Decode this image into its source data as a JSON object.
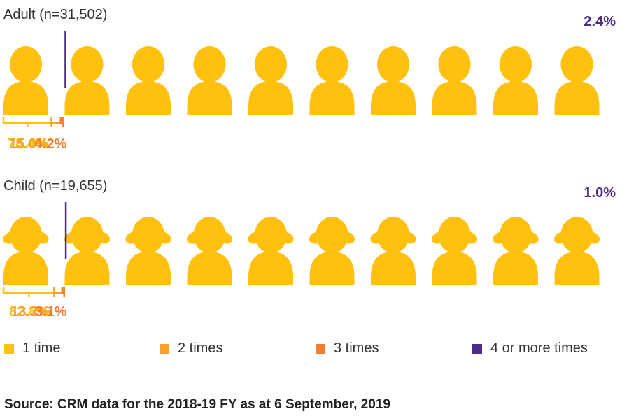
{
  "colors": {
    "one": "#FFC10E",
    "two": "#F7A12B",
    "three": "#F27D2A",
    "four": "#4B2E8A",
    "text": "#333333"
  },
  "chart_data": [
    {
      "type": "pictograph",
      "title": "Adult (n=31,502)",
      "figure": "adult",
      "series": [
        {
          "name": "1 time",
          "value": 78.4,
          "label": "78.4%"
        },
        {
          "name": "2 times",
          "value": 15.0,
          "label": "15.0%"
        },
        {
          "name": "3 times",
          "value": 4.2,
          "label": "4.2%"
        },
        {
          "name": "4 or more times",
          "value": 2.4,
          "label": "2.4%"
        }
      ]
    },
    {
      "type": "pictograph",
      "title": "Child (n=19,655)",
      "figure": "child",
      "series": [
        {
          "name": "1 time",
          "value": 82.8,
          "label": "82.8%"
        },
        {
          "name": "2 times",
          "value": 13.2,
          "label": "13.2%"
        },
        {
          "name": "3 times",
          "value": 3.1,
          "label": "3.1%"
        },
        {
          "name": "4 or more times",
          "value": 1.0,
          "label": "1.0%"
        }
      ]
    }
  ],
  "legend": [
    {
      "label": "1 time",
      "color": "#FFC10E"
    },
    {
      "label": "2 times",
      "color": "#F7A12B"
    },
    {
      "label": "3 times",
      "color": "#F27D2A"
    },
    {
      "label": "4 or more times",
      "color": "#4B2E8A"
    }
  ],
  "source": "Source: CRM data for the 2018-19 FY as at 6 September, 2019"
}
